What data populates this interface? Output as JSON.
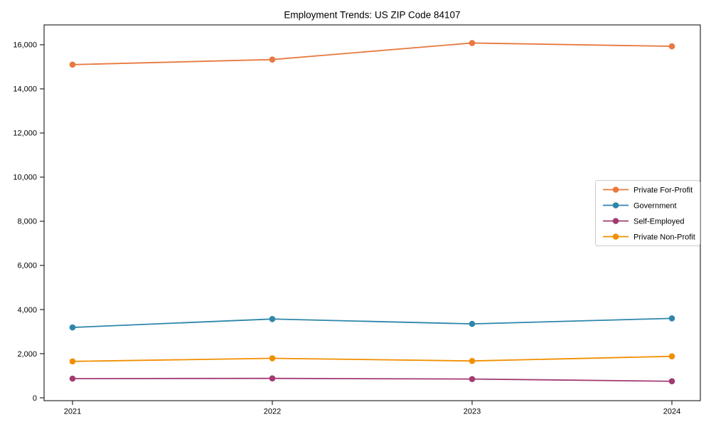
{
  "page": {
    "background_color": "#ffffff",
    "axis_color": "#000000",
    "text_color": "#000000",
    "legend_border_color": "#cccccc",
    "legend_background_color": "#ffffff"
  },
  "chart_data": {
    "type": "line",
    "title": "Employment Trends: US ZIP Code 84107",
    "x": [
      2021,
      2022,
      2023,
      2024
    ],
    "x_tick_labels": [
      "2021",
      "2022",
      "2023",
      "2024"
    ],
    "series": [
      {
        "name": "Private For-Profit",
        "color": "#E8793F",
        "marker": "circle",
        "values": [
          15100,
          15330,
          16080,
          15930
        ]
      },
      {
        "name": "Government",
        "color": "#2E86AB",
        "marker": "circle",
        "values": [
          3190,
          3570,
          3350,
          3600
        ]
      },
      {
        "name": "Self-Employed",
        "color": "#A23B72",
        "marker": "circle",
        "values": [
          870,
          880,
          850,
          750
        ]
      },
      {
        "name": "Private Non-Profit",
        "color": "#F18F01",
        "marker": "circle",
        "values": [
          1650,
          1790,
          1670,
          1880
        ]
      }
    ],
    "xlabel": "",
    "ylabel": "",
    "ylim": [
      -130,
      16900
    ],
    "y_ticks": [
      0,
      2000,
      4000,
      6000,
      8000,
      10000,
      12000,
      14000,
      16000
    ],
    "y_tick_labels": [
      "0",
      "2,000",
      "4,000",
      "6,000",
      "8,000",
      "10,000",
      "12,000",
      "14,000",
      "16,000"
    ],
    "grid": false,
    "legend": {
      "position": "center-right",
      "entries": [
        "Private For-Profit",
        "Government",
        "Self-Employed",
        "Private Non-Profit"
      ]
    }
  }
}
